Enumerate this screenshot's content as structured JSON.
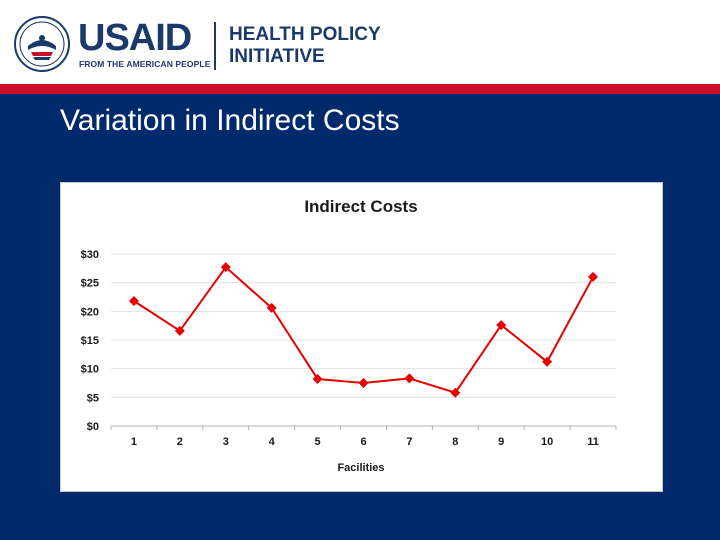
{
  "header": {
    "logo_word": "USAID",
    "logo_tagline": "FROM THE AMERICAN PEOPLE",
    "program_line1": "HEALTH POLICY",
    "program_line2": "INITIATIVE"
  },
  "slide": {
    "title": "Variation in Indirect Costs"
  },
  "colors": {
    "header_bg": "#ffffff",
    "red_bar": "#c8102e",
    "slide_bg": "#002a6c",
    "usaid_blue": "#1b3a6b",
    "series": "#e60000"
  },
  "chart_data": {
    "type": "line",
    "title": "Indirect Costs",
    "xlabel": "Facilities",
    "ylabel": "",
    "x": [
      1,
      2,
      3,
      4,
      5,
      6,
      7,
      8,
      9,
      10,
      11
    ],
    "categories": [
      "1",
      "2",
      "3",
      "4",
      "5",
      "6",
      "7",
      "8",
      "9",
      "10",
      "11"
    ],
    "values": [
      21.8,
      16.6,
      27.7,
      20.6,
      8.2,
      7.5,
      8.3,
      5.8,
      17.6,
      11.2,
      26.0
    ],
    "ylim": [
      0,
      30
    ],
    "yticks": [
      0,
      5,
      10,
      15,
      20,
      25,
      30
    ],
    "ytick_labels": [
      "$0",
      "$5",
      "$10",
      "$15",
      "$20",
      "$25",
      "$30"
    ],
    "marker": "diamond",
    "grid": true,
    "legend": "none"
  }
}
